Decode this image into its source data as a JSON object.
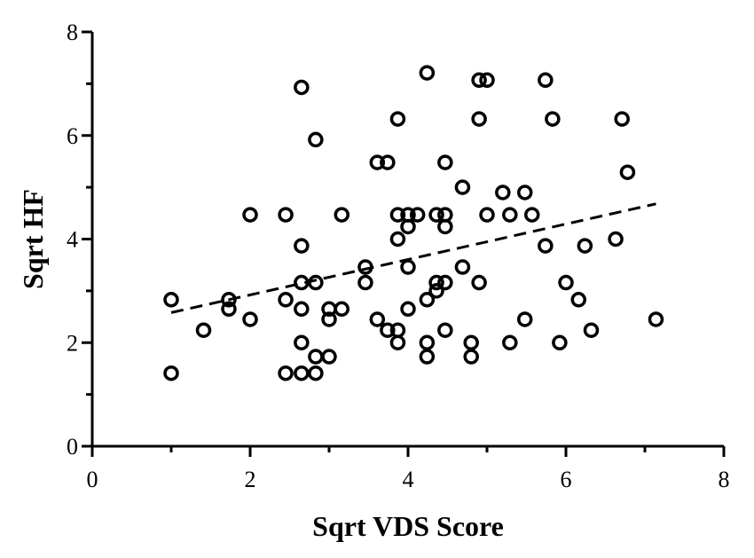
{
  "chart_data": {
    "type": "scatter",
    "xlabel": "Sqrt VDS Score",
    "ylabel": "Sqrt HF",
    "xlim": [
      0,
      8
    ],
    "ylim": [
      0,
      8
    ],
    "xticks": [
      "0",
      "2",
      "4",
      "6",
      "8"
    ],
    "yticks": [
      "0",
      "2",
      "4",
      "6",
      "8"
    ],
    "grid": false,
    "marker": "open-circle",
    "points": [
      {
        "x": 1.0,
        "y": 2.83
      },
      {
        "x": 1.0,
        "y": 1.41
      },
      {
        "x": 1.41,
        "y": 2.24
      },
      {
        "x": 1.73,
        "y": 2.83
      },
      {
        "x": 1.73,
        "y": 2.65
      },
      {
        "x": 2.0,
        "y": 4.47
      },
      {
        "x": 2.0,
        "y": 2.45
      },
      {
        "x": 2.45,
        "y": 4.47
      },
      {
        "x": 2.45,
        "y": 2.83
      },
      {
        "x": 2.45,
        "y": 1.41
      },
      {
        "x": 2.65,
        "y": 6.93
      },
      {
        "x": 2.65,
        "y": 3.87
      },
      {
        "x": 2.65,
        "y": 3.16
      },
      {
        "x": 2.65,
        "y": 2.65
      },
      {
        "x": 2.65,
        "y": 2.0
      },
      {
        "x": 2.65,
        "y": 1.41
      },
      {
        "x": 2.83,
        "y": 5.92
      },
      {
        "x": 2.83,
        "y": 3.16
      },
      {
        "x": 2.83,
        "y": 1.73
      },
      {
        "x": 2.83,
        "y": 1.41
      },
      {
        "x": 3.0,
        "y": 2.65
      },
      {
        "x": 3.0,
        "y": 2.45
      },
      {
        "x": 3.0,
        "y": 1.73
      },
      {
        "x": 3.16,
        "y": 4.47
      },
      {
        "x": 3.16,
        "y": 2.65
      },
      {
        "x": 3.46,
        "y": 3.46
      },
      {
        "x": 3.46,
        "y": 3.16
      },
      {
        "x": 3.61,
        "y": 5.48
      },
      {
        "x": 3.61,
        "y": 2.45
      },
      {
        "x": 3.74,
        "y": 5.48
      },
      {
        "x": 3.74,
        "y": 2.24
      },
      {
        "x": 3.87,
        "y": 6.32
      },
      {
        "x": 3.87,
        "y": 4.47
      },
      {
        "x": 3.87,
        "y": 4.0
      },
      {
        "x": 3.87,
        "y": 2.24
      },
      {
        "x": 3.87,
        "y": 2.0
      },
      {
        "x": 4.0,
        "y": 4.47
      },
      {
        "x": 4.0,
        "y": 4.24
      },
      {
        "x": 4.0,
        "y": 3.46
      },
      {
        "x": 4.0,
        "y": 2.65
      },
      {
        "x": 4.12,
        "y": 4.47
      },
      {
        "x": 4.24,
        "y": 7.21
      },
      {
        "x": 4.24,
        "y": 2.83
      },
      {
        "x": 4.24,
        "y": 2.0
      },
      {
        "x": 4.24,
        "y": 1.73
      },
      {
        "x": 4.36,
        "y": 4.47
      },
      {
        "x": 4.36,
        "y": 3.16
      },
      {
        "x": 4.36,
        "y": 3.0
      },
      {
        "x": 4.47,
        "y": 5.48
      },
      {
        "x": 4.47,
        "y": 4.47
      },
      {
        "x": 4.47,
        "y": 4.24
      },
      {
        "x": 4.47,
        "y": 3.16
      },
      {
        "x": 4.47,
        "y": 2.24
      },
      {
        "x": 4.69,
        "y": 5.0
      },
      {
        "x": 4.69,
        "y": 3.46
      },
      {
        "x": 4.8,
        "y": 2.0
      },
      {
        "x": 4.8,
        "y": 1.73
      },
      {
        "x": 4.9,
        "y": 7.07
      },
      {
        "x": 4.9,
        "y": 6.32
      },
      {
        "x": 4.9,
        "y": 3.16
      },
      {
        "x": 5.0,
        "y": 7.07
      },
      {
        "x": 5.0,
        "y": 4.47
      },
      {
        "x": 5.2,
        "y": 4.9
      },
      {
        "x": 5.29,
        "y": 4.47
      },
      {
        "x": 5.29,
        "y": 2.0
      },
      {
        "x": 5.48,
        "y": 4.9
      },
      {
        "x": 5.48,
        "y": 2.45
      },
      {
        "x": 5.57,
        "y": 4.47
      },
      {
        "x": 5.74,
        "y": 7.07
      },
      {
        "x": 5.74,
        "y": 3.87
      },
      {
        "x": 5.83,
        "y": 6.32
      },
      {
        "x": 5.92,
        "y": 2.0
      },
      {
        "x": 6.0,
        "y": 3.16
      },
      {
        "x": 6.16,
        "y": 2.83
      },
      {
        "x": 6.24,
        "y": 3.87
      },
      {
        "x": 6.32,
        "y": 2.24
      },
      {
        "x": 6.63,
        "y": 4.0
      },
      {
        "x": 6.71,
        "y": 6.32
      },
      {
        "x": 6.78,
        "y": 5.29
      },
      {
        "x": 7.14,
        "y": 2.45
      }
    ],
    "trendline": {
      "style": "dashed",
      "x": [
        1.0,
        7.14
      ],
      "y": [
        2.58,
        4.68
      ]
    }
  }
}
